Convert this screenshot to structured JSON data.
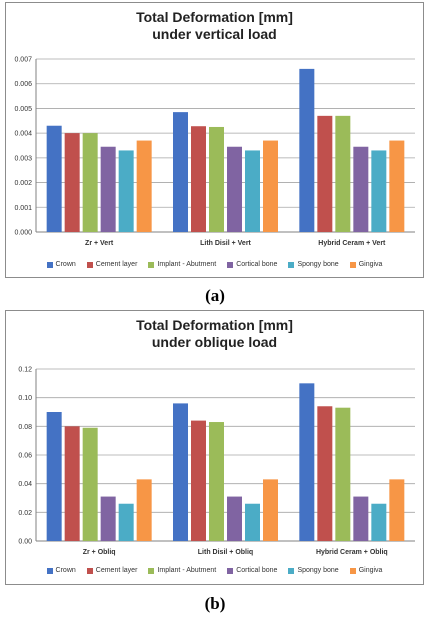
{
  "chart_data": [
    {
      "type": "bar",
      "title_line1": "Total Deformation [mm]",
      "title_line2": "under vertical load",
      "categories": [
        "Zr + Vert",
        "Lith Disil + Vert",
        "Hybrid Ceram + Vert"
      ],
      "ylim": [
        0,
        0.007
      ],
      "yticks": [
        "0.000",
        "0.001",
        "0.002",
        "0.003",
        "0.004",
        "0.005",
        "0.006",
        "0.007"
      ],
      "grid": true,
      "legend_position": "bottom",
      "series": [
        {
          "name": "Crown",
          "color": "#4472c4",
          "values": [
            0.0043,
            0.00485,
            0.0066
          ]
        },
        {
          "name": "Cement layer",
          "color": "#c0504d",
          "values": [
            0.004,
            0.00428,
            0.0047
          ]
        },
        {
          "name": "Implant - Abutment",
          "color": "#9bbb59",
          "values": [
            0.004,
            0.00425,
            0.0047
          ]
        },
        {
          "name": "Cortical bone",
          "color": "#8064a2",
          "values": [
            0.00345,
            0.00345,
            0.00345
          ]
        },
        {
          "name": "Spongy bone",
          "color": "#4bacc6",
          "values": [
            0.0033,
            0.0033,
            0.0033
          ]
        },
        {
          "name": "Gingiva",
          "color": "#f79646",
          "values": [
            0.0037,
            0.0037,
            0.0037
          ]
        }
      ]
    },
    {
      "type": "bar",
      "title_line1": "Total Deformation [mm]",
      "title_line2": "under oblique load",
      "categories": [
        "Zr + Obliq",
        "Lith Disil + Obliq",
        "Hybrid Ceram + Obliq"
      ],
      "ylim": [
        0,
        0.12
      ],
      "yticks": [
        "0.00",
        "0.02",
        "0.04",
        "0.06",
        "0.08",
        "0.10",
        "0.12"
      ],
      "grid": true,
      "legend_position": "bottom",
      "series": [
        {
          "name": "Crown",
          "color": "#4472c4",
          "values": [
            0.09,
            0.096,
            0.11
          ]
        },
        {
          "name": "Cement layer",
          "color": "#c0504d",
          "values": [
            0.08,
            0.084,
            0.094
          ]
        },
        {
          "name": "Implant - Abutment",
          "color": "#9bbb59",
          "values": [
            0.079,
            0.083,
            0.093
          ]
        },
        {
          "name": "Cortical bone",
          "color": "#8064a2",
          "values": [
            0.031,
            0.031,
            0.031
          ]
        },
        {
          "name": "Spongy bone",
          "color": "#4bacc6",
          "values": [
            0.026,
            0.026,
            0.026
          ]
        },
        {
          "name": "Gingiva",
          "color": "#f79646",
          "values": [
            0.043,
            0.043,
            0.043
          ]
        }
      ]
    }
  ],
  "captions": {
    "a": "(a)",
    "b": "(b)"
  }
}
